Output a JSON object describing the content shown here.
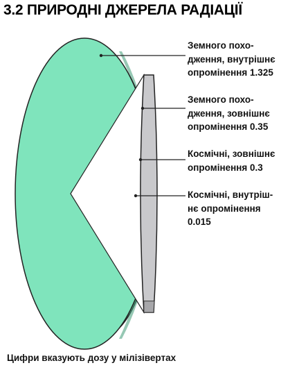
{
  "title": "3.2 ПРИРОДНІ ДЖЕРЕЛА РАДІАЦІЇ",
  "footnote": "Цифри вказують дозу у мілізівертах",
  "chart_data": {
    "type": "pie",
    "title": "3.2 ПРИРОДНІ ДЖЕРЕЛА РАДІАЦІЇ",
    "unit": "мілізіверт",
    "categories": [
      "Земного походження, внутрішнє опромінення",
      "Земного походження, зовнішнє опромінення",
      "Космічні, зовнішнє опромінення",
      "Космічні, внутрішнє опромінення"
    ],
    "labels": [
      "Земного похо­дження, внутрішнє опромінення 1.325",
      "Земного похо­дження, зовнішнє опромінення 0.35",
      "Космічні, зовнішнє опромінення 0.3",
      "Космічні, внутріш­нє опромінення 0.015"
    ],
    "values": [
      1.325,
      0.35,
      0.3,
      0.015
    ],
    "colors": {
      "face": "#7fe4bc",
      "rim": "#62c79f",
      "rim_dark": "#3f9a76",
      "slice_light": "#c9c9cc",
      "slice_dark": "#a7a7aa",
      "outline": "#222222"
    }
  }
}
